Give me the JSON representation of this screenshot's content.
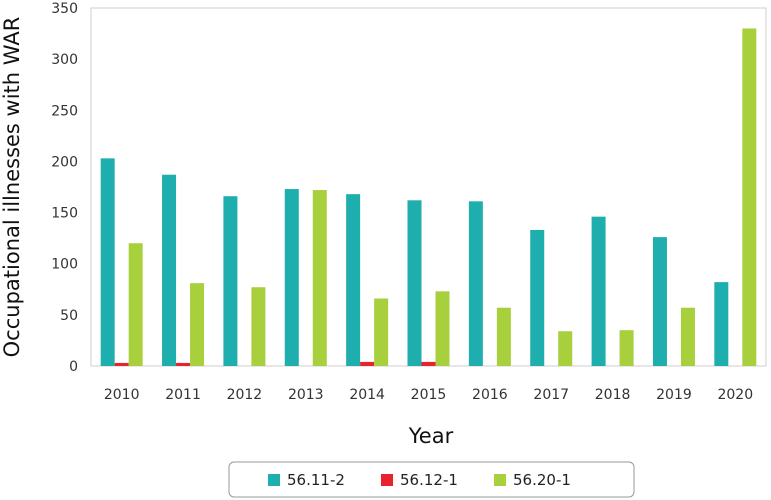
{
  "chart_data": {
    "type": "bar",
    "categories": [
      "2010",
      "2011",
      "2012",
      "2013",
      "2014",
      "2015",
      "2016",
      "2017",
      "2018",
      "2019",
      "2020"
    ],
    "series": [
      {
        "name": "56.11-2",
        "color": "#1eaeae",
        "values": [
          203,
          187,
          166,
          173,
          168,
          162,
          161,
          133,
          146,
          126,
          82
        ]
      },
      {
        "name": "56.12-1",
        "color": "#e8232f",
        "values": [
          3,
          3,
          0,
          0,
          4,
          4,
          0,
          0,
          0,
          0,
          0
        ]
      },
      {
        "name": "56.20-1",
        "color": "#a8cf3c",
        "values": [
          120,
          81,
          77,
          172,
          66,
          73,
          57,
          34,
          35,
          57,
          330
        ]
      }
    ],
    "xlabel": "Year",
    "ylabel": "Occupational illnesses with WAR",
    "ylim": [
      0,
      350
    ],
    "yticks": [
      0,
      50,
      100,
      150,
      200,
      250,
      300,
      350
    ],
    "grid": false,
    "legend_position": "bottom"
  }
}
